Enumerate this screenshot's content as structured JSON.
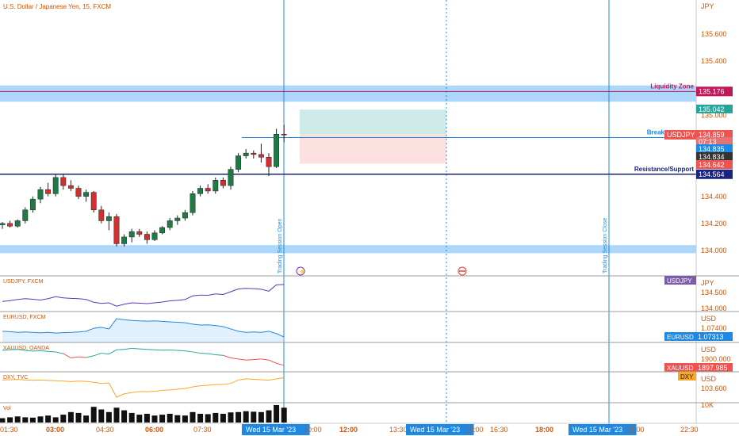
{
  "header": {
    "symbol_title": "U.S. Dollar / Japanese Yen, 15, FXCM"
  },
  "colors": {
    "up": "#26a69a",
    "down": "#ef5350",
    "candle_up": "#1e7b45",
    "candle_down": "#d32f2f",
    "liquidity": "#c2185b",
    "resistance": "#1a237e",
    "zone_blue": "#90caf9",
    "session": "#1e88e5"
  },
  "chart_data": {
    "type": "candlestick",
    "title": "U.S. Dollar / Japanese Yen, 15, FXCM",
    "price_axis": {
      "unit": "JPY",
      "ticks": [
        "135.600",
        "135.400",
        "135.000",
        "134.400",
        "134.200",
        "134.000"
      ],
      "tick_values": [
        135.6,
        135.4,
        135.0,
        134.4,
        134.2,
        134.0
      ],
      "range": [
        133.9,
        135.8
      ]
    },
    "time_axis": {
      "ticks": [
        "01:30",
        "03:00",
        "04:30",
        "06:00",
        "07:30",
        "Wed 15 Mar '23",
        "10:00",
        "12:00",
        "13:30",
        "Wed 15 Mar '23",
        "15:00",
        "16:30",
        "18:00",
        "Wed 15 Mar '23",
        "20:00",
        "22:30"
      ]
    },
    "candles": [
      {
        "o": 134.19,
        "h": 134.21,
        "l": 134.16,
        "c": 134.2
      },
      {
        "o": 134.2,
        "h": 134.22,
        "l": 134.17,
        "c": 134.18
      },
      {
        "o": 134.18,
        "h": 134.23,
        "l": 134.17,
        "c": 134.22
      },
      {
        "o": 134.22,
        "h": 134.32,
        "l": 134.2,
        "c": 134.3
      },
      {
        "o": 134.3,
        "h": 134.4,
        "l": 134.28,
        "c": 134.38
      },
      {
        "o": 134.38,
        "h": 134.47,
        "l": 134.35,
        "c": 134.45
      },
      {
        "o": 134.45,
        "h": 134.5,
        "l": 134.4,
        "c": 134.42
      },
      {
        "o": 134.42,
        "h": 134.56,
        "l": 134.4,
        "c": 134.54
      },
      {
        "o": 134.54,
        "h": 134.56,
        "l": 134.45,
        "c": 134.48
      },
      {
        "o": 134.48,
        "h": 134.52,
        "l": 134.44,
        "c": 134.46
      },
      {
        "o": 134.46,
        "h": 134.48,
        "l": 134.38,
        "c": 134.4
      },
      {
        "o": 134.4,
        "h": 134.45,
        "l": 134.36,
        "c": 134.43
      },
      {
        "o": 134.43,
        "h": 134.44,
        "l": 134.28,
        "c": 134.3
      },
      {
        "o": 134.3,
        "h": 134.33,
        "l": 134.2,
        "c": 134.22
      },
      {
        "o": 134.22,
        "h": 134.28,
        "l": 134.15,
        "c": 134.25
      },
      {
        "o": 134.25,
        "h": 134.27,
        "l": 134.03,
        "c": 134.05
      },
      {
        "o": 134.05,
        "h": 134.12,
        "l": 134.03,
        "c": 134.1
      },
      {
        "o": 134.1,
        "h": 134.16,
        "l": 134.06,
        "c": 134.14
      },
      {
        "o": 134.14,
        "h": 134.16,
        "l": 134.1,
        "c": 134.12
      },
      {
        "o": 134.12,
        "h": 134.14,
        "l": 134.05,
        "c": 134.08
      },
      {
        "o": 134.08,
        "h": 134.15,
        "l": 134.07,
        "c": 134.13
      },
      {
        "o": 134.13,
        "h": 134.18,
        "l": 134.12,
        "c": 134.17
      },
      {
        "o": 134.17,
        "h": 134.24,
        "l": 134.15,
        "c": 134.22
      },
      {
        "o": 134.22,
        "h": 134.26,
        "l": 134.19,
        "c": 134.24
      },
      {
        "o": 134.24,
        "h": 134.3,
        "l": 134.22,
        "c": 134.28
      },
      {
        "o": 134.28,
        "h": 134.44,
        "l": 134.26,
        "c": 134.42
      },
      {
        "o": 134.42,
        "h": 134.48,
        "l": 134.4,
        "c": 134.46
      },
      {
        "o": 134.46,
        "h": 134.49,
        "l": 134.42,
        "c": 134.44
      },
      {
        "o": 134.44,
        "h": 134.54,
        "l": 134.42,
        "c": 134.52
      },
      {
        "o": 134.52,
        "h": 134.54,
        "l": 134.46,
        "c": 134.48
      },
      {
        "o": 134.48,
        "h": 134.62,
        "l": 134.45,
        "c": 134.6
      },
      {
        "o": 134.6,
        "h": 134.72,
        "l": 134.58,
        "c": 134.7
      },
      {
        "o": 134.7,
        "h": 134.75,
        "l": 134.68,
        "c": 134.72
      },
      {
        "o": 134.72,
        "h": 134.74,
        "l": 134.68,
        "c": 134.71
      },
      {
        "o": 134.71,
        "h": 134.79,
        "l": 134.65,
        "c": 134.69
      },
      {
        "o": 134.69,
        "h": 134.72,
        "l": 134.55,
        "c": 134.62
      },
      {
        "o": 134.62,
        "h": 134.9,
        "l": 134.61,
        "c": 134.86
      },
      {
        "o": 134.86,
        "h": 134.93,
        "l": 134.8,
        "c": 134.859
      }
    ],
    "levels": [
      {
        "label": "Liquidity Zone",
        "value": 135.176,
        "value_label": "135.176"
      },
      {
        "label": "Break",
        "value": 134.835,
        "value_label": "134.835"
      },
      {
        "label": "Resistance/Support",
        "value": 134.564,
        "value_label": "134.564"
      }
    ],
    "price_tags": [
      {
        "text": "135.042",
        "value": 135.042
      },
      {
        "text": "134.859",
        "value": 134.859
      },
      {
        "text": "07:13",
        "value": 134.86
      },
      {
        "text": "134.835",
        "value": 134.835
      },
      {
        "text": "134.834",
        "value": 134.834
      },
      {
        "text": "134.642",
        "value": 134.642
      }
    ],
    "symbol_tag": "USDJPY",
    "zones": [
      [
        135.1,
        135.22
      ],
      [
        133.98,
        134.04
      ]
    ],
    "session_labels": [
      "Trading Session Open",
      "Trading Session Close"
    ],
    "sub_panes": [
      {
        "name": "USDJPY, FXCM",
        "tag": "USDJPY",
        "unit": "JPY",
        "ticks": [
          "134.500",
          "134.000"
        ],
        "values": [
          0.25,
          0.28,
          0.32,
          0.35,
          0.33,
          0.3,
          0.35,
          0.42,
          0.38,
          0.36,
          0.35,
          0.32,
          0.22,
          0.18,
          0.2,
          0.08,
          0.15,
          0.2,
          0.19,
          0.17,
          0.2,
          0.23,
          0.27,
          0.29,
          0.32,
          0.45,
          0.48,
          0.47,
          0.52,
          0.5,
          0.6,
          0.7,
          0.72,
          0.71,
          0.69,
          0.62,
          0.85,
          0.86
        ]
      },
      {
        "name": "EURUSD, FXCM",
        "tag": "EURUSD",
        "tag_value": "1.07313",
        "unit": "USD",
        "ticks": [
          "1.07400"
        ],
        "values": [
          0.35,
          0.33,
          0.3,
          0.32,
          0.3,
          0.28,
          0.3,
          0.27,
          0.29,
          0.3,
          0.32,
          0.35,
          0.48,
          0.52,
          0.45,
          0.9,
          0.85,
          0.82,
          0.8,
          0.79,
          0.8,
          0.78,
          0.76,
          0.74,
          0.72,
          0.66,
          0.62,
          0.63,
          0.6,
          0.55,
          0.45,
          0.35,
          0.3,
          0.32,
          0.3,
          0.35,
          0.25,
          0.1
        ]
      },
      {
        "name": "XAUUSD, OANDA",
        "tag": "XAUUSD",
        "tag_value": "1897.985",
        "unit": "USD",
        "ticks": [
          "1900.000"
        ],
        "values": [
          0.85,
          0.88,
          0.9,
          0.85,
          0.82,
          0.84,
          0.8,
          0.78,
          0.7,
          0.5,
          0.55,
          0.52,
          0.6,
          0.72,
          0.68,
          0.88,
          0.9,
          0.95,
          0.92,
          0.9,
          0.88,
          0.86,
          0.87,
          0.85,
          0.83,
          0.78,
          0.72,
          0.7,
          0.65,
          0.62,
          0.5,
          0.45,
          0.4,
          0.42,
          0.45,
          0.4,
          0.25,
          0.15
        ]
      },
      {
        "name": "DXY, TVC",
        "tag": "DXY",
        "unit": "USD",
        "ticks": [
          "103.600"
        ],
        "values": [
          0.85,
          0.86,
          0.87,
          0.85,
          0.84,
          0.85,
          0.83,
          0.82,
          0.8,
          0.78,
          0.8,
          0.79,
          0.75,
          0.7,
          0.72,
          0.1,
          0.25,
          0.3,
          0.35,
          0.34,
          0.36,
          0.4,
          0.42,
          0.45,
          0.48,
          0.55,
          0.6,
          0.62,
          0.65,
          0.66,
          0.7,
          0.85,
          0.9,
          0.88,
          0.86,
          0.84,
          0.9,
          0.95
        ]
      }
    ],
    "volume": {
      "label": "Vol",
      "tick": "10K",
      "values": [
        0.25,
        0.3,
        0.35,
        0.3,
        0.28,
        0.35,
        0.4,
        0.3,
        0.45,
        0.6,
        0.55,
        0.4,
        0.9,
        0.75,
        0.6,
        0.85,
        0.7,
        0.55,
        0.45,
        0.5,
        0.4,
        0.45,
        0.5,
        0.42,
        0.4,
        0.6,
        0.5,
        0.48,
        0.55,
        0.5,
        0.58,
        0.6,
        0.65,
        0.62,
        0.6,
        0.7,
        1.0,
        0.85
      ]
    }
  }
}
